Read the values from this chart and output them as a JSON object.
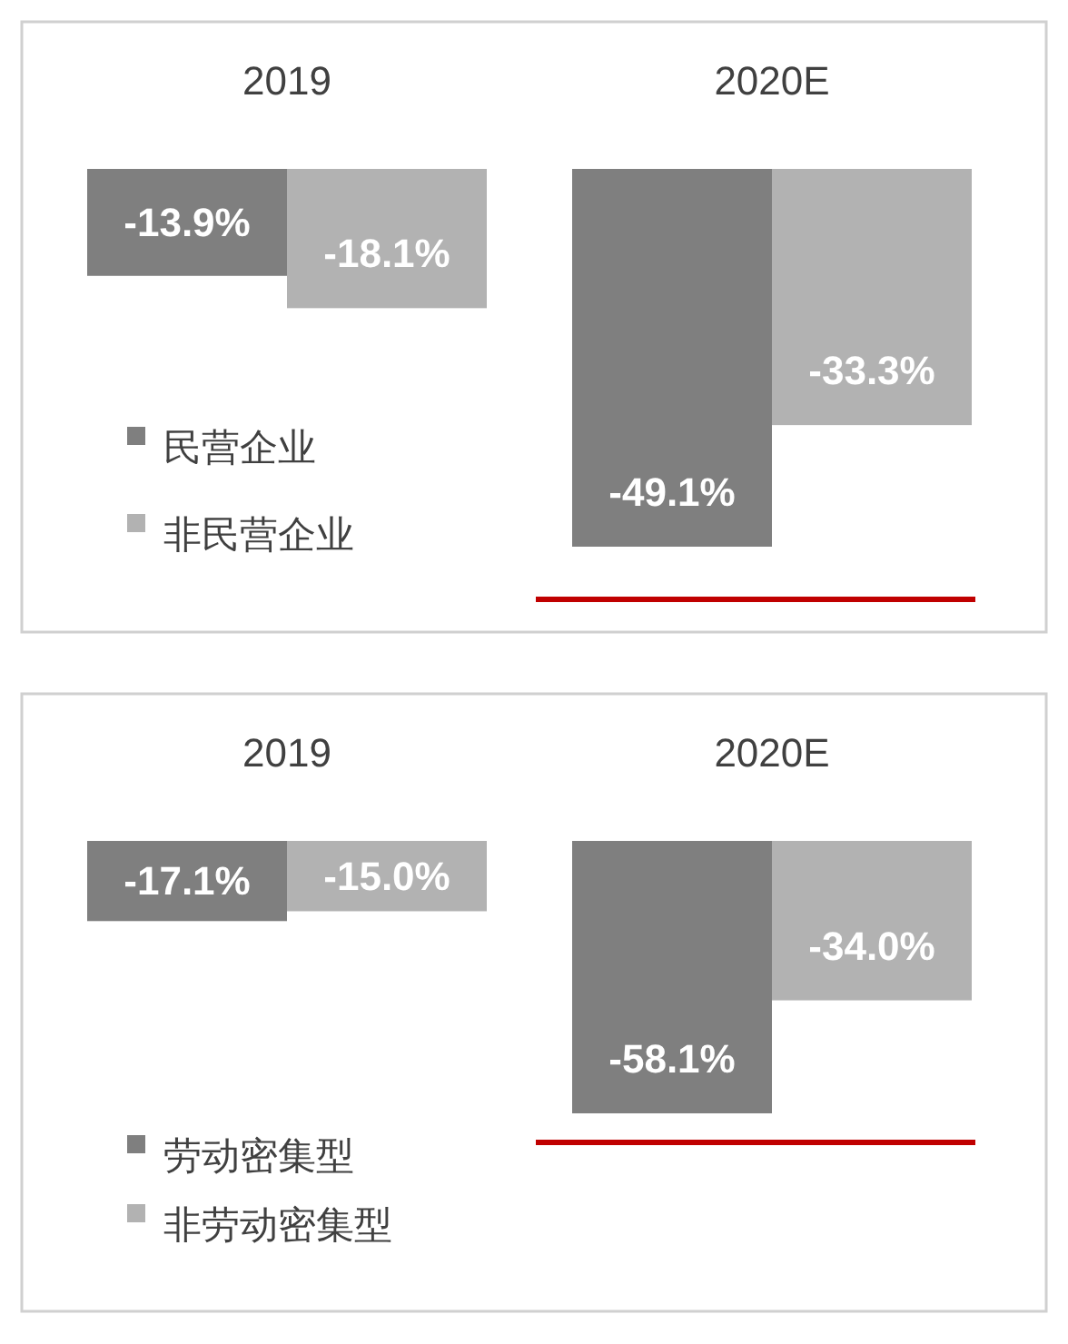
{
  "chart_data": [
    {
      "type": "bar",
      "categories": [
        "2019",
        "2020E"
      ],
      "legend": "bottom left",
      "series": [
        {
          "name": "民营企业",
          "color": "#7f7f7f",
          "values": [
            -13.9,
            -49.1
          ],
          "value_labels": [
            "-13.9%",
            "-49.1%"
          ]
        },
        {
          "name": "非民营企业",
          "color": "#b2b2b2",
          "values": [
            -18.1,
            -33.3
          ],
          "value_labels": [
            "-18.1%",
            "-33.3%"
          ]
        }
      ]
    },
    {
      "type": "bar",
      "categories": [
        "2019",
        "2020E"
      ],
      "legend": "bottom left",
      "series": [
        {
          "name": "劳动密集型",
          "color": "#7f7f7f",
          "values": [
            -17.1,
            -58.1
          ],
          "value_labels": [
            "-17.1%",
            "-58.1%"
          ]
        },
        {
          "name": "非劳动密集型",
          "color": "#b2b2b2",
          "values": [
            -15.0,
            -34.0
          ],
          "value_labels": [
            "-15.0%",
            "-34.0%"
          ]
        }
      ]
    }
  ]
}
